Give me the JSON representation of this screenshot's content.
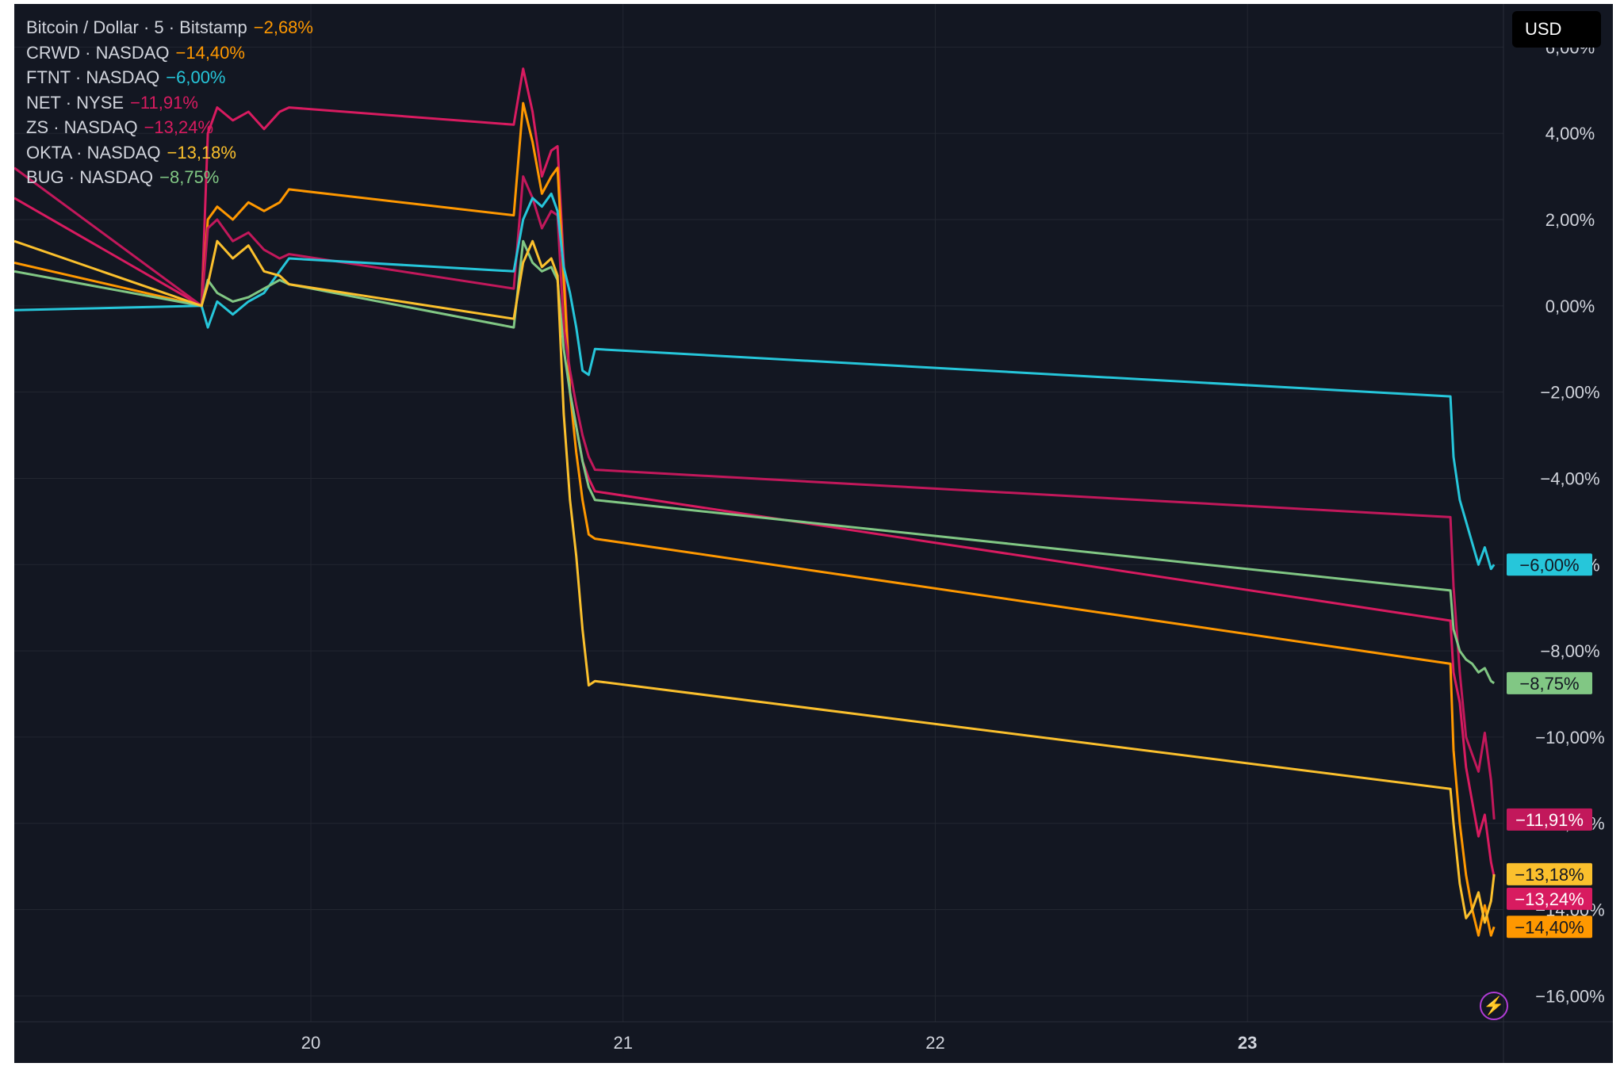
{
  "legend": [
    {
      "name": "Bitcoin / Dollar · 5 · Bitstamp",
      "change": "−2,68%",
      "color": "#ff9800"
    },
    {
      "name": "CRWD · NASDAQ",
      "change": "−14,40%",
      "color": "#ff9800"
    },
    {
      "name": "FTNT · NASDAQ",
      "change": "−6,00%",
      "color": "#26c6da"
    },
    {
      "name": "NET · NYSE",
      "change": "−11,91%",
      "color": "#d81b60"
    },
    {
      "name": "ZS · NASDAQ",
      "change": "−13,24%",
      "color": "#d81b60"
    },
    {
      "name": "OKTA · NASDAQ",
      "change": "−13,18%",
      "color": "#fbc02d"
    },
    {
      "name": "BUG · NASDAQ",
      "change": "−8,75%",
      "color": "#81c784"
    }
  ],
  "currency_label": "USD",
  "theme": {
    "background": "#131722",
    "grid": "#232731",
    "text": "#d1d4dc"
  },
  "chart_data": {
    "type": "line",
    "y_unit": "%",
    "ylim": [
      -16.6,
      7.0
    ],
    "xlim": [
      19.05,
      23.82
    ],
    "x_ticks": [
      {
        "value": 20,
        "label": "20",
        "bold": false
      },
      {
        "value": 21,
        "label": "21",
        "bold": false
      },
      {
        "value": 22,
        "label": "22",
        "bold": false
      },
      {
        "value": 23,
        "label": "23",
        "bold": true
      }
    ],
    "y_ticks": [
      {
        "value": 6,
        "label": "6,00%"
      },
      {
        "value": 4,
        "label": "4,00%"
      },
      {
        "value": 2,
        "label": "2,00%"
      },
      {
        "value": 0,
        "label": "0,00%"
      },
      {
        "value": -2,
        "label": "−2,00%"
      },
      {
        "value": -4,
        "label": "−4,00%"
      },
      {
        "value": -6,
        "label": "−6,00%"
      },
      {
        "value": -8,
        "label": "−8,00%"
      },
      {
        "value": -10,
        "label": "−10,00%"
      },
      {
        "value": -12,
        "label": "−12,00%"
      },
      {
        "value": -14,
        "label": "−14,00%"
      },
      {
        "value": -16,
        "label": "−16,00%"
      }
    ],
    "grid": true,
    "series": [
      {
        "name": "ZS · NASDAQ",
        "color": "#d81b60",
        "x": [
          19.05,
          19.65,
          19.67,
          19.7,
          19.75,
          19.8,
          19.85,
          19.9,
          19.93,
          20.65,
          20.68,
          20.71,
          20.74,
          20.77,
          20.79,
          20.81,
          20.83,
          20.85,
          20.87,
          20.89,
          20.91,
          23.65,
          23.66,
          23.68,
          23.7,
          23.72,
          23.74,
          23.76,
          23.78,
          23.79
        ],
        "y": [
          2.5,
          0.0,
          4.0,
          4.6,
          4.3,
          4.5,
          4.1,
          4.5,
          4.6,
          4.2,
          5.5,
          4.5,
          3.0,
          3.6,
          3.7,
          1.0,
          -2.0,
          -2.8,
          -3.6,
          -4.0,
          -4.3,
          -7.3,
          -8.5,
          -9.2,
          -10.7,
          -11.5,
          -12.3,
          -11.8,
          -12.9,
          -13.24
        ]
      },
      {
        "name": "CRWD · NASDAQ",
        "color": "#ff9800",
        "x": [
          19.05,
          19.65,
          19.67,
          19.7,
          19.75,
          19.8,
          19.85,
          19.9,
          19.93,
          20.65,
          20.68,
          20.71,
          20.74,
          20.77,
          20.79,
          20.81,
          20.83,
          20.85,
          20.87,
          20.89,
          20.91,
          23.65,
          23.66,
          23.68,
          23.7,
          23.72,
          23.74,
          23.76,
          23.78,
          23.79
        ],
        "y": [
          1.0,
          0.0,
          2.0,
          2.3,
          2.0,
          2.4,
          2.2,
          2.4,
          2.7,
          2.1,
          4.7,
          3.8,
          2.6,
          3.0,
          3.2,
          0.6,
          -2.0,
          -3.4,
          -4.5,
          -5.3,
          -5.4,
          -8.3,
          -10.3,
          -12.0,
          -13.2,
          -14.0,
          -14.6,
          -13.9,
          -14.6,
          -14.4
        ]
      },
      {
        "name": "NET · NYSE",
        "color": "#c2185b",
        "x": [
          19.05,
          19.65,
          19.67,
          19.7,
          19.75,
          19.8,
          19.85,
          19.9,
          19.93,
          20.65,
          20.68,
          20.71,
          20.74,
          20.77,
          20.79,
          20.81,
          20.83,
          20.85,
          20.87,
          20.89,
          20.91,
          23.65,
          23.66,
          23.68,
          23.7,
          23.72,
          23.74,
          23.76,
          23.78,
          23.79
        ],
        "y": [
          3.2,
          0.0,
          1.8,
          2.0,
          1.5,
          1.7,
          1.3,
          1.1,
          1.2,
          0.4,
          3.0,
          2.5,
          1.8,
          2.2,
          2.1,
          -0.5,
          -1.5,
          -2.3,
          -3.0,
          -3.5,
          -3.8,
          -4.9,
          -6.5,
          -8.5,
          -10.0,
          -10.4,
          -10.8,
          -9.9,
          -11.0,
          -11.91
        ]
      },
      {
        "name": "FTNT · NASDAQ",
        "color": "#26c6da",
        "x": [
          19.05,
          19.65,
          19.67,
          19.7,
          19.75,
          19.8,
          19.85,
          19.9,
          19.93,
          20.65,
          20.68,
          20.71,
          20.74,
          20.77,
          20.79,
          20.81,
          20.83,
          20.85,
          20.87,
          20.89,
          20.91,
          23.65,
          23.66,
          23.68,
          23.7,
          23.72,
          23.74,
          23.76,
          23.78,
          23.79
        ],
        "y": [
          -0.1,
          0.0,
          -0.5,
          0.1,
          -0.2,
          0.1,
          0.3,
          0.8,
          1.1,
          0.8,
          2.0,
          2.5,
          2.3,
          2.6,
          2.2,
          0.9,
          0.3,
          -0.5,
          -1.5,
          -1.6,
          -1.0,
          -2.1,
          -3.5,
          -4.5,
          -5.0,
          -5.5,
          -6.0,
          -5.6,
          -6.1,
          -6.0
        ]
      },
      {
        "name": "BUG · NASDAQ",
        "color": "#81c784",
        "x": [
          19.05,
          19.65,
          19.67,
          19.7,
          19.75,
          19.8,
          19.85,
          19.9,
          19.93,
          20.65,
          20.68,
          20.71,
          20.74,
          20.77,
          20.79,
          20.81,
          20.83,
          20.85,
          20.87,
          20.89,
          20.91,
          23.65,
          23.66,
          23.68,
          23.7,
          23.72,
          23.74,
          23.76,
          23.78,
          23.79
        ],
        "y": [
          0.8,
          0.0,
          0.6,
          0.3,
          0.1,
          0.2,
          0.4,
          0.6,
          0.5,
          -0.5,
          1.5,
          1.0,
          0.8,
          0.9,
          0.6,
          -1.0,
          -2.0,
          -2.8,
          -3.6,
          -4.2,
          -4.5,
          -6.6,
          -7.5,
          -8.0,
          -8.2,
          -8.3,
          -8.5,
          -8.4,
          -8.7,
          -8.75
        ]
      },
      {
        "name": "OKTA · NASDAQ",
        "color": "#fbc02d",
        "x": [
          19.05,
          19.65,
          19.67,
          19.7,
          19.75,
          19.8,
          19.85,
          19.9,
          19.93,
          20.65,
          20.68,
          20.71,
          20.74,
          20.77,
          20.79,
          20.81,
          20.83,
          20.85,
          20.87,
          20.89,
          20.91,
          23.65,
          23.66,
          23.68,
          23.7,
          23.72,
          23.74,
          23.76,
          23.78,
          23.79
        ],
        "y": [
          1.5,
          0.0,
          0.5,
          1.5,
          1.1,
          1.4,
          0.8,
          0.7,
          0.5,
          -0.3,
          1.0,
          1.5,
          0.9,
          1.1,
          0.7,
          -2.5,
          -4.5,
          -5.8,
          -7.5,
          -8.8,
          -8.7,
          -11.2,
          -12.0,
          -13.4,
          -14.2,
          -14.0,
          -13.6,
          -14.3,
          -13.8,
          -13.18
        ]
      }
    ],
    "last_value_labels": [
      {
        "value": -6.0,
        "label": "−6,00%",
        "bg": "#26c6da",
        "fg": "#131722"
      },
      {
        "value": -8.75,
        "label": "−8,75%",
        "bg": "#81c784",
        "fg": "#131722"
      },
      {
        "value": -11.91,
        "label": "−11,91%",
        "bg": "#c2185b",
        "fg": "#ffffff"
      },
      {
        "value": -13.18,
        "label": "−13,18%",
        "bg": "#fbc02d",
        "fg": "#131722"
      },
      {
        "value": -13.24,
        "label": "−13,24%",
        "bg": "#d81b60",
        "fg": "#ffffff"
      },
      {
        "value": -14.4,
        "label": "−14,40%",
        "bg": "#ff9800",
        "fg": "#131722"
      }
    ]
  }
}
